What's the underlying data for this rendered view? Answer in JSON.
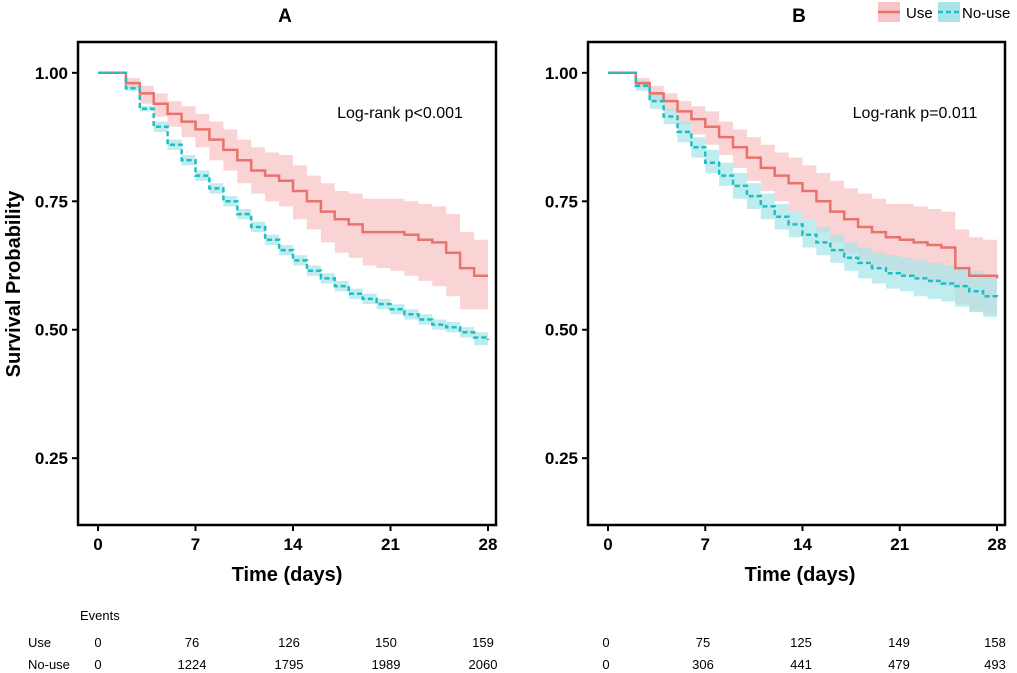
{
  "chart_data": [
    {
      "type": "line",
      "subtype": "kaplan-meier",
      "panel_label": "A",
      "title": "A",
      "xlabel": "Time (days)",
      "ylabel": "Survival Probability",
      "xlim": [
        0,
        28
      ],
      "ylim": [
        0.12,
        1.06
      ],
      "xticks": [
        0,
        7,
        14,
        21,
        28
      ],
      "xtick_labels": [
        "0",
        "7",
        "14",
        "21",
        "28"
      ],
      "yticks": [
        0.25,
        0.5,
        0.75,
        1.0
      ],
      "ytick_labels": [
        "0.25",
        "0.50",
        "0.75",
        "1.00"
      ],
      "annotation": "Log-rank p<0.001",
      "series": [
        {
          "name": "Use",
          "color": "#E8736C",
          "band_color": "#F8C4C6",
          "style": "solid",
          "x": [
            0,
            1,
            2,
            3,
            4,
            5,
            6,
            7,
            8,
            9,
            10,
            11,
            12,
            13,
            14,
            15,
            16,
            17,
            18,
            19,
            20,
            21,
            22,
            23,
            24,
            25,
            26,
            27,
            28
          ],
          "y": [
            1.0,
            1.0,
            0.98,
            0.96,
            0.94,
            0.92,
            0.905,
            0.89,
            0.87,
            0.85,
            0.83,
            0.81,
            0.8,
            0.79,
            0.77,
            0.75,
            0.73,
            0.715,
            0.705,
            0.69,
            0.69,
            0.69,
            0.685,
            0.675,
            0.67,
            0.65,
            0.62,
            0.605,
            0.605
          ],
          "lower": [
            1.0,
            1.0,
            0.97,
            0.94,
            0.915,
            0.895,
            0.875,
            0.855,
            0.83,
            0.81,
            0.785,
            0.765,
            0.75,
            0.74,
            0.715,
            0.695,
            0.67,
            0.65,
            0.64,
            0.625,
            0.62,
            0.615,
            0.605,
            0.595,
            0.585,
            0.565,
            0.54,
            0.54,
            0.54
          ],
          "upper": [
            1.0,
            1.0,
            0.99,
            0.975,
            0.96,
            0.945,
            0.935,
            0.92,
            0.905,
            0.89,
            0.87,
            0.855,
            0.845,
            0.84,
            0.82,
            0.8,
            0.785,
            0.77,
            0.765,
            0.755,
            0.755,
            0.755,
            0.75,
            0.745,
            0.74,
            0.725,
            0.69,
            0.675,
            0.675
          ]
        },
        {
          "name": "No-use",
          "color": "#1BBFC4",
          "band_color": "#A9E5E8",
          "style": "dashed",
          "x": [
            0,
            1,
            2,
            3,
            4,
            5,
            6,
            7,
            8,
            9,
            10,
            11,
            12,
            13,
            14,
            15,
            16,
            17,
            18,
            19,
            20,
            21,
            22,
            23,
            24,
            25,
            26,
            27,
            28
          ],
          "y": [
            1.0,
            1.0,
            0.97,
            0.93,
            0.895,
            0.86,
            0.83,
            0.8,
            0.775,
            0.75,
            0.725,
            0.7,
            0.675,
            0.655,
            0.635,
            0.615,
            0.6,
            0.585,
            0.57,
            0.56,
            0.55,
            0.54,
            0.53,
            0.52,
            0.51,
            0.505,
            0.495,
            0.485,
            0.48
          ],
          "lower": [
            1.0,
            1.0,
            0.965,
            0.925,
            0.885,
            0.85,
            0.82,
            0.79,
            0.765,
            0.74,
            0.715,
            0.69,
            0.665,
            0.645,
            0.625,
            0.605,
            0.59,
            0.575,
            0.56,
            0.55,
            0.54,
            0.53,
            0.52,
            0.51,
            0.5,
            0.495,
            0.485,
            0.47,
            0.465
          ],
          "upper": [
            1.0,
            1.0,
            0.975,
            0.935,
            0.905,
            0.87,
            0.84,
            0.81,
            0.785,
            0.76,
            0.735,
            0.71,
            0.685,
            0.665,
            0.645,
            0.625,
            0.61,
            0.595,
            0.58,
            0.57,
            0.56,
            0.55,
            0.54,
            0.53,
            0.52,
            0.515,
            0.505,
            0.495,
            0.49
          ]
        }
      ],
      "risk_table": {
        "title": "Events",
        "row_labels": [
          "Use",
          "No-use"
        ],
        "times": [
          0,
          7,
          14,
          21,
          28
        ],
        "use": [
          "0",
          "76",
          "126",
          "150",
          "159"
        ],
        "no_use": [
          "0",
          "1224",
          "1795",
          "1989",
          "2060"
        ]
      }
    },
    {
      "type": "line",
      "subtype": "kaplan-meier",
      "panel_label": "B",
      "title": "B",
      "xlabel": "Time (days)",
      "ylabel": "",
      "xlim": [
        0,
        28
      ],
      "ylim": [
        0.12,
        1.06
      ],
      "xticks": [
        0,
        7,
        14,
        21,
        28
      ],
      "xtick_labels": [
        "0",
        "7",
        "14",
        "21",
        "28"
      ],
      "yticks": [
        0.25,
        0.5,
        0.75,
        1.0
      ],
      "ytick_labels": [
        "0.25",
        "0.50",
        "0.75",
        "1.00"
      ],
      "annotation": "Log-rank p=0.011",
      "series": [
        {
          "name": "Use",
          "color": "#E8736C",
          "band_color": "#F8C4C6",
          "style": "solid",
          "x": [
            0,
            1,
            2,
            3,
            4,
            5,
            6,
            7,
            8,
            9,
            10,
            11,
            12,
            13,
            14,
            15,
            16,
            17,
            18,
            19,
            20,
            21,
            22,
            23,
            24,
            25,
            26,
            27,
            28
          ],
          "y": [
            1.0,
            1.0,
            0.98,
            0.96,
            0.945,
            0.925,
            0.91,
            0.895,
            0.875,
            0.855,
            0.835,
            0.815,
            0.8,
            0.785,
            0.77,
            0.75,
            0.73,
            0.715,
            0.7,
            0.69,
            0.68,
            0.675,
            0.67,
            0.665,
            0.66,
            0.62,
            0.605,
            0.605,
            0.6
          ],
          "lower": [
            1.0,
            1.0,
            0.97,
            0.945,
            0.925,
            0.9,
            0.88,
            0.86,
            0.84,
            0.815,
            0.79,
            0.77,
            0.75,
            0.73,
            0.715,
            0.69,
            0.67,
            0.65,
            0.635,
            0.625,
            0.615,
            0.605,
            0.6,
            0.59,
            0.585,
            0.55,
            0.535,
            0.53,
            0.53
          ],
          "upper": [
            1.0,
            1.0,
            0.99,
            0.975,
            0.96,
            0.945,
            0.935,
            0.925,
            0.905,
            0.89,
            0.875,
            0.86,
            0.845,
            0.835,
            0.82,
            0.805,
            0.79,
            0.775,
            0.765,
            0.755,
            0.745,
            0.745,
            0.74,
            0.735,
            0.73,
            0.695,
            0.68,
            0.675,
            0.67
          ]
        },
        {
          "name": "No-use",
          "color": "#1BBFC4",
          "band_color": "#A9E5E8",
          "style": "dashed",
          "x": [
            0,
            1,
            2,
            3,
            4,
            5,
            6,
            7,
            8,
            9,
            10,
            11,
            12,
            13,
            14,
            15,
            16,
            17,
            18,
            19,
            20,
            21,
            22,
            23,
            24,
            25,
            26,
            27,
            28
          ],
          "y": [
            1.0,
            1.0,
            0.975,
            0.945,
            0.915,
            0.885,
            0.855,
            0.825,
            0.8,
            0.78,
            0.76,
            0.74,
            0.72,
            0.705,
            0.685,
            0.67,
            0.655,
            0.64,
            0.63,
            0.62,
            0.61,
            0.605,
            0.6,
            0.595,
            0.59,
            0.585,
            0.575,
            0.565,
            0.56
          ],
          "lower": [
            1.0,
            1.0,
            0.965,
            0.93,
            0.9,
            0.865,
            0.835,
            0.805,
            0.78,
            0.755,
            0.735,
            0.715,
            0.695,
            0.68,
            0.66,
            0.645,
            0.63,
            0.615,
            0.6,
            0.59,
            0.58,
            0.575,
            0.565,
            0.56,
            0.555,
            0.545,
            0.535,
            0.525,
            0.52
          ],
          "upper": [
            1.0,
            1.0,
            0.985,
            0.96,
            0.93,
            0.905,
            0.875,
            0.85,
            0.825,
            0.805,
            0.785,
            0.765,
            0.745,
            0.73,
            0.715,
            0.7,
            0.685,
            0.67,
            0.66,
            0.65,
            0.645,
            0.64,
            0.635,
            0.63,
            0.625,
            0.62,
            0.615,
            0.605,
            0.6
          ]
        }
      ],
      "risk_table": {
        "title": "",
        "row_labels": [],
        "times": [
          0,
          7,
          14,
          21,
          28
        ],
        "use": [
          "0",
          "75",
          "125",
          "149",
          "158"
        ],
        "no_use": [
          "0",
          "306",
          "441",
          "479",
          "493"
        ]
      }
    }
  ],
  "legend": {
    "placement": "top-right",
    "items": [
      {
        "label": "Use",
        "color": "#E8736C",
        "band_color": "#F8C4C6",
        "style": "solid"
      },
      {
        "label": "No-use",
        "color": "#1BBFC4",
        "band_color": "#A9E5E8",
        "style": "dashed"
      }
    ]
  }
}
